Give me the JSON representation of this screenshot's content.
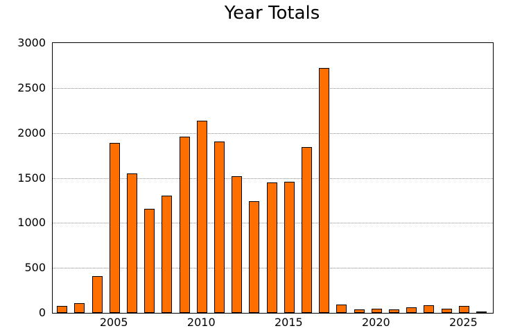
{
  "title": "Year Totals",
  "chart_data": {
    "type": "bar",
    "title": "Year Totals",
    "xlabel": "",
    "ylabel": "",
    "x": [
      2002,
      2003,
      2004,
      2005,
      2006,
      2007,
      2008,
      2009,
      2010,
      2011,
      2012,
      2013,
      2014,
      2015,
      2016,
      2017,
      2018,
      2019,
      2020,
      2021,
      2022,
      2023,
      2024,
      2025,
      2026
    ],
    "values": [
      80,
      110,
      410,
      1890,
      1550,
      1155,
      1300,
      1960,
      2140,
      1905,
      1520,
      1245,
      1450,
      1460,
      1840,
      2720,
      95,
      40,
      50,
      36,
      60,
      85,
      46,
      75,
      8
    ],
    "xticks": [
      2005,
      2010,
      2015,
      2020,
      2025
    ],
    "yticks": [
      0,
      500,
      1000,
      1500,
      2000,
      2500,
      3000
    ],
    "xlim": [
      2001.46,
      2026.65
    ],
    "ylim": [
      0,
      3000
    ],
    "grid": "horizontal-dotted",
    "legend": "none",
    "bar_color": "#FF6F00",
    "bar_edge_color": "#000000",
    "gridline_color": "#8a8a8a",
    "frame_color": "#000000",
    "background_color": "#ffffff"
  }
}
